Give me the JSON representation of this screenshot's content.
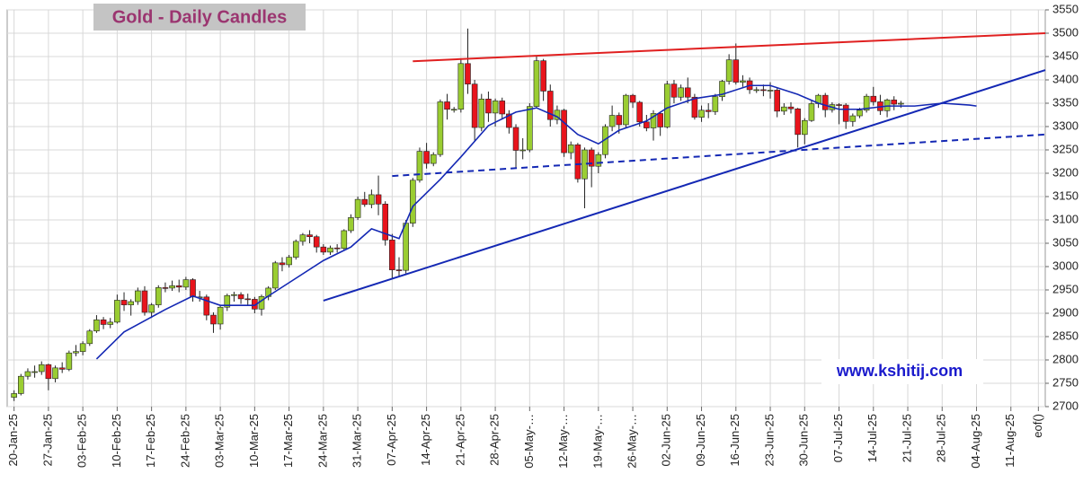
{
  "chart_data": {
    "type": "candlestick",
    "title": "Gold - Daily Candles",
    "watermark": "www.kshitij.com",
    "up_color": "#9acd32",
    "down_color": "#e8141c",
    "x": [
      "2025-01-20",
      "2025-01-21",
      "2025-01-22",
      "2025-01-23",
      "2025-01-24",
      "2025-01-27",
      "2025-01-28",
      "2025-01-29",
      "2025-01-30",
      "2025-01-31",
      "2025-02-03",
      "2025-02-04",
      "2025-02-05",
      "2025-02-06",
      "2025-02-07",
      "2025-02-10",
      "2025-02-11",
      "2025-02-12",
      "2025-02-13",
      "2025-02-14",
      "2025-02-17",
      "2025-02-18",
      "2025-02-19",
      "2025-02-20",
      "2025-02-21",
      "2025-02-24",
      "2025-02-25",
      "2025-02-26",
      "2025-02-27",
      "2025-02-28",
      "2025-03-03",
      "2025-03-04",
      "2025-03-05",
      "2025-03-06",
      "2025-03-07",
      "2025-03-10",
      "2025-03-11",
      "2025-03-12",
      "2025-03-13",
      "2025-03-14",
      "2025-03-17",
      "2025-03-18",
      "2025-03-19",
      "2025-03-20",
      "2025-03-21",
      "2025-03-24",
      "2025-03-25",
      "2025-03-26",
      "2025-03-27",
      "2025-03-28",
      "2025-03-31",
      "2025-04-01",
      "2025-04-02",
      "2025-04-03",
      "2025-04-04",
      "2025-04-07",
      "2025-04-08",
      "2025-04-09",
      "2025-04-10",
      "2025-04-11",
      "2025-04-14",
      "2025-04-15",
      "2025-04-16",
      "2025-04-17",
      "2025-04-18",
      "2025-04-21",
      "2025-04-22",
      "2025-04-23",
      "2025-04-24",
      "2025-04-25",
      "2025-04-28",
      "2025-04-29",
      "2025-04-30",
      "2025-05-01",
      "2025-05-02",
      "2025-05-05",
      "2025-05-06",
      "2025-05-07",
      "2025-05-08",
      "2025-05-09",
      "2025-05-12",
      "2025-05-13",
      "2025-05-14",
      "2025-05-15",
      "2025-05-16",
      "2025-05-19",
      "2025-05-20",
      "2025-05-21",
      "2025-05-22",
      "2025-05-23",
      "2025-05-26",
      "2025-05-27",
      "2025-05-28",
      "2025-05-29",
      "2025-05-30",
      "2025-06-02",
      "2025-06-03",
      "2025-06-04",
      "2025-06-05",
      "2025-06-06",
      "2025-06-09",
      "2025-06-10",
      "2025-06-11",
      "2025-06-12",
      "2025-06-13",
      "2025-06-16",
      "2025-06-17",
      "2025-06-18",
      "2025-06-19",
      "2025-06-20",
      "2025-06-23",
      "2025-06-24",
      "2025-06-25",
      "2025-06-26",
      "2025-06-27",
      "2025-06-30",
      "2025-07-01",
      "2025-07-02",
      "2025-07-03",
      "2025-07-04",
      "2025-07-07",
      "2025-07-08",
      "2025-07-09",
      "2025-07-10",
      "2025-07-11",
      "2025-07-14",
      "2025-07-15",
      "2025-07-16",
      "2025-07-17",
      "2025-07-18"
    ],
    "ohlc": [
      [
        2720,
        2735,
        2712,
        2728
      ],
      [
        2728,
        2770,
        2724,
        2765
      ],
      [
        2765,
        2782,
        2758,
        2775
      ],
      [
        2775,
        2788,
        2762,
        2775
      ],
      [
        2775,
        2797,
        2768,
        2790
      ],
      [
        2790,
        2792,
        2735,
        2760
      ],
      [
        2760,
        2788,
        2752,
        2783
      ],
      [
        2783,
        2795,
        2772,
        2780
      ],
      [
        2780,
        2820,
        2776,
        2815
      ],
      [
        2815,
        2832,
        2808,
        2818
      ],
      [
        2818,
        2840,
        2810,
        2835
      ],
      [
        2835,
        2866,
        2830,
        2862
      ],
      [
        2862,
        2896,
        2858,
        2886
      ],
      [
        2886,
        2892,
        2866,
        2876
      ],
      [
        2876,
        2890,
        2868,
        2881
      ],
      [
        2881,
        2940,
        2878,
        2928
      ],
      [
        2928,
        2945,
        2905,
        2918
      ],
      [
        2918,
        2930,
        2895,
        2925
      ],
      [
        2925,
        2955,
        2918,
        2948
      ],
      [
        2948,
        2958,
        2895,
        2902
      ],
      [
        2902,
        2922,
        2890,
        2918
      ],
      [
        2918,
        2960,
        2912,
        2955
      ],
      [
        2955,
        2966,
        2945,
        2954
      ],
      [
        2954,
        2970,
        2948,
        2959
      ],
      [
        2959,
        2972,
        2945,
        2956
      ],
      [
        2956,
        2978,
        2950,
        2972
      ],
      [
        2972,
        2975,
        2925,
        2935
      ],
      [
        2935,
        2948,
        2925,
        2935
      ],
      [
        2935,
        2940,
        2885,
        2896
      ],
      [
        2896,
        2902,
        2858,
        2877
      ],
      [
        2877,
        2918,
        2865,
        2913
      ],
      [
        2913,
        2942,
        2905,
        2938
      ],
      [
        2938,
        2946,
        2925,
        2940
      ],
      [
        2940,
        2945,
        2920,
        2931
      ],
      [
        2931,
        2942,
        2918,
        2930
      ],
      [
        2930,
        2935,
        2900,
        2909
      ],
      [
        2909,
        2940,
        2895,
        2936
      ],
      [
        2936,
        2958,
        2928,
        2954
      ],
      [
        2954,
        3012,
        2950,
        3008
      ],
      [
        3008,
        3020,
        2990,
        3004
      ],
      [
        3004,
        3025,
        2998,
        3020
      ],
      [
        3020,
        3058,
        3015,
        3054
      ],
      [
        3054,
        3072,
        3045,
        3068
      ],
      [
        3068,
        3078,
        3050,
        3064
      ],
      [
        3064,
        3068,
        3030,
        3042
      ],
      [
        3042,
        3048,
        3025,
        3031
      ],
      [
        3031,
        3045,
        3025,
        3040
      ],
      [
        3040,
        3048,
        3030,
        3039
      ],
      [
        3039,
        3080,
        3036,
        3077
      ],
      [
        3077,
        3112,
        3072,
        3105
      ],
      [
        3105,
        3150,
        3100,
        3144
      ],
      [
        3144,
        3160,
        3128,
        3133
      ],
      [
        3133,
        3165,
        3125,
        3154
      ],
      [
        3154,
        3195,
        3110,
        3134
      ],
      [
        3134,
        3140,
        3045,
        3057
      ],
      [
        3057,
        3070,
        2975,
        2993
      ],
      [
        2993,
        3020,
        2978,
        2992
      ],
      [
        2992,
        3100,
        2985,
        3093
      ],
      [
        3093,
        3190,
        3085,
        3185
      ],
      [
        3185,
        3255,
        3180,
        3247
      ],
      [
        3247,
        3265,
        3210,
        3221
      ],
      [
        3221,
        3245,
        3215,
        3240
      ],
      [
        3240,
        3358,
        3235,
        3353
      ],
      [
        3353,
        3370,
        3315,
        3337
      ],
      [
        3337,
        3342,
        3330,
        3337
      ],
      [
        3337,
        3445,
        3330,
        3435
      ],
      [
        3435,
        3510,
        3370,
        3391
      ],
      [
        3391,
        3400,
        3270,
        3298
      ],
      [
        3298,
        3370,
        3290,
        3359
      ],
      [
        3359,
        3375,
        3310,
        3329
      ],
      [
        3329,
        3360,
        3300,
        3355
      ],
      [
        3355,
        3362,
        3315,
        3327
      ],
      [
        3327,
        3335,
        3285,
        3298
      ],
      [
        3298,
        3305,
        3210,
        3249
      ],
      [
        3249,
        3275,
        3230,
        3250
      ],
      [
        3250,
        3350,
        3245,
        3343
      ],
      [
        3343,
        3450,
        3340,
        3441
      ],
      [
        3441,
        3445,
        3355,
        3376
      ],
      [
        3376,
        3390,
        3300,
        3315
      ],
      [
        3315,
        3345,
        3305,
        3335
      ],
      [
        3335,
        3338,
        3235,
        3244
      ],
      [
        3244,
        3268,
        3230,
        3261
      ],
      [
        3261,
        3265,
        3180,
        3188
      ],
      [
        3188,
        3255,
        3125,
        3250
      ],
      [
        3250,
        3255,
        3170,
        3215
      ],
      [
        3215,
        3245,
        3200,
        3240
      ],
      [
        3240,
        3305,
        3232,
        3300
      ],
      [
        3300,
        3345,
        3290,
        3324
      ],
      [
        3324,
        3330,
        3285,
        3304
      ],
      [
        3304,
        3370,
        3298,
        3367
      ],
      [
        3367,
        3370,
        3340,
        3352
      ],
      [
        3352,
        3355,
        3300,
        3310
      ],
      [
        3310,
        3325,
        3290,
        3297
      ],
      [
        3297,
        3335,
        3270,
        3328
      ],
      [
        3328,
        3332,
        3280,
        3299
      ],
      [
        3299,
        3398,
        3296,
        3391
      ],
      [
        3391,
        3400,
        3350,
        3363
      ],
      [
        3363,
        3390,
        3355,
        3383
      ],
      [
        3383,
        3405,
        3350,
        3363
      ],
      [
        3363,
        3370,
        3315,
        3320
      ],
      [
        3320,
        3345,
        3310,
        3335
      ],
      [
        3335,
        3350,
        3318,
        3332
      ],
      [
        3332,
        3370,
        3325,
        3364
      ],
      [
        3364,
        3400,
        3355,
        3397
      ],
      [
        3397,
        3455,
        3390,
        3443
      ],
      [
        3443,
        3478,
        3390,
        3395
      ],
      [
        3395,
        3410,
        3385,
        3398
      ],
      [
        3398,
        3405,
        3370,
        3379
      ],
      [
        3379,
        3385,
        3372,
        3379
      ],
      [
        3379,
        3390,
        3365,
        3378
      ],
      [
        3378,
        3395,
        3360,
        3378
      ],
      [
        3378,
        3382,
        3320,
        3333
      ],
      [
        3333,
        3350,
        3325,
        3342
      ],
      [
        3342,
        3352,
        3328,
        3338
      ],
      [
        3338,
        3340,
        3255,
        3283
      ],
      [
        3283,
        3318,
        3262,
        3313
      ],
      [
        3313,
        3355,
        3310,
        3349
      ],
      [
        3349,
        3370,
        3340,
        3367
      ],
      [
        3367,
        3372,
        3320,
        3336
      ],
      [
        3336,
        3352,
        3330,
        3347
      ],
      [
        3347,
        3350,
        3305,
        3346
      ],
      [
        3346,
        3350,
        3295,
        3311
      ],
      [
        3311,
        3328,
        3300,
        3323
      ],
      [
        3323,
        3340,
        3318,
        3335
      ],
      [
        3335,
        3370,
        3330,
        3365
      ],
      [
        3365,
        3385,
        3345,
        3353
      ],
      [
        3353,
        3368,
        3325,
        3334
      ],
      [
        3334,
        3360,
        3320,
        3357
      ],
      [
        3357,
        3365,
        3335,
        3348
      ],
      [
        3348,
        3355,
        3340,
        3350
      ]
    ],
    "ma": {
      "color": "#1428b4",
      "x": [
        "2025-02-05",
        "2025-02-11",
        "2025-02-19",
        "2025-02-25",
        "2025-03-03",
        "2025-03-10",
        "2025-03-12",
        "2025-03-18",
        "2025-03-24",
        "2025-03-28",
        "2025-04-02",
        "2025-04-08",
        "2025-04-10",
        "2025-04-16",
        "2025-04-21",
        "2025-04-25",
        "2025-05-01",
        "2025-05-06",
        "2025-05-09",
        "2025-05-14",
        "2025-05-19",
        "2025-05-22",
        "2025-05-28",
        "2025-06-02",
        "2025-06-06",
        "2025-06-12",
        "2025-06-18",
        "2025-06-23",
        "2025-06-27",
        "2025-07-02",
        "2025-07-07",
        "2025-07-10",
        "2025-07-16",
        "2025-07-22",
        "2025-07-28",
        "2025-08-01",
        "2025-08-04"
      ],
      "values": [
        2802,
        2860,
        2908,
        2937,
        2917,
        2917,
        2937,
        2975,
        3013,
        3042,
        3081,
        3060,
        3129,
        3187,
        3235,
        3302,
        3331,
        3340,
        3321,
        3283,
        3263,
        3292,
        3312,
        3340,
        3360,
        3369,
        3388,
        3388,
        3369,
        3350,
        3337,
        3337,
        3344,
        3344,
        3350,
        3346,
        3344
      ]
    },
    "lines": [
      {
        "color": "#e02020",
        "dashed": false,
        "x": [
          "2025-04-10",
          "2025-08-18"
        ],
        "y": [
          3440,
          3500
        ]
      },
      {
        "color": "#1428b4",
        "dashed": false,
        "x": [
          "2025-03-24",
          "2025-08-18"
        ],
        "y": [
          2927,
          3421
        ]
      },
      {
        "color": "#1428b4",
        "dashed": true,
        "x": [
          "2025-04-07",
          "2025-08-18"
        ],
        "y": [
          3194,
          3283
        ]
      }
    ],
    "xlim": [
      "2025-01-17",
      "2025-08-18"
    ],
    "xticks": [
      {
        "value": "2025-01-20",
        "label": "20-Jan-25"
      },
      {
        "value": "2025-01-27",
        "label": "27-Jan-25"
      },
      {
        "value": "2025-02-03",
        "label": "03-Feb-25"
      },
      {
        "value": "2025-02-10",
        "label": "10-Feb-25"
      },
      {
        "value": "2025-02-17",
        "label": "17-Feb-25"
      },
      {
        "value": "2025-02-24",
        "label": "24-Feb-25"
      },
      {
        "value": "2025-03-03",
        "label": "03-Mar-25"
      },
      {
        "value": "2025-03-10",
        "label": "10-Mar-25"
      },
      {
        "value": "2025-03-17",
        "label": "17-Mar-25"
      },
      {
        "value": "2025-03-24",
        "label": "24-Mar-25"
      },
      {
        "value": "2025-03-31",
        "label": "31-Mar-25"
      },
      {
        "value": "2025-04-07",
        "label": "07-Apr-25"
      },
      {
        "value": "2025-04-14",
        "label": "14-Apr-25"
      },
      {
        "value": "2025-04-21",
        "label": "21-Apr-25"
      },
      {
        "value": "2025-04-28",
        "label": "28-Apr-25"
      },
      {
        "value": "2025-05-05",
        "label": "05-May-…"
      },
      {
        "value": "2025-05-12",
        "label": "12-May-…"
      },
      {
        "value": "2025-05-19",
        "label": "19-May-…"
      },
      {
        "value": "2025-05-26",
        "label": "26-May-…"
      },
      {
        "value": "2025-06-02",
        "label": "02-Jun-25"
      },
      {
        "value": "2025-06-09",
        "label": "09-Jun-25"
      },
      {
        "value": "2025-06-16",
        "label": "16-Jun-25"
      },
      {
        "value": "2025-06-23",
        "label": "23-Jun-25"
      },
      {
        "value": "2025-06-30",
        "label": "30-Jun-25"
      },
      {
        "value": "2025-07-07",
        "label": "07-Jul-25"
      },
      {
        "value": "2025-07-14",
        "label": "14-Jul-25"
      },
      {
        "value": "2025-07-21",
        "label": "21-Jul-25"
      },
      {
        "value": "2025-07-28",
        "label": "28-Jul-25"
      },
      {
        "value": "2025-08-04",
        "label": "04-Aug-25"
      },
      {
        "value": "2025-08-11",
        "label": "11-Aug-25"
      },
      {
        "value": "2025-08-15",
        "label": "eof()"
      }
    ],
    "ylim": [
      2700,
      3550
    ],
    "yticks": [
      2700,
      2750,
      2800,
      2850,
      2900,
      2950,
      3000,
      3050,
      3100,
      3150,
      3200,
      3250,
      3300,
      3350,
      3400,
      3450,
      3500,
      3550
    ],
    "grid": true
  }
}
